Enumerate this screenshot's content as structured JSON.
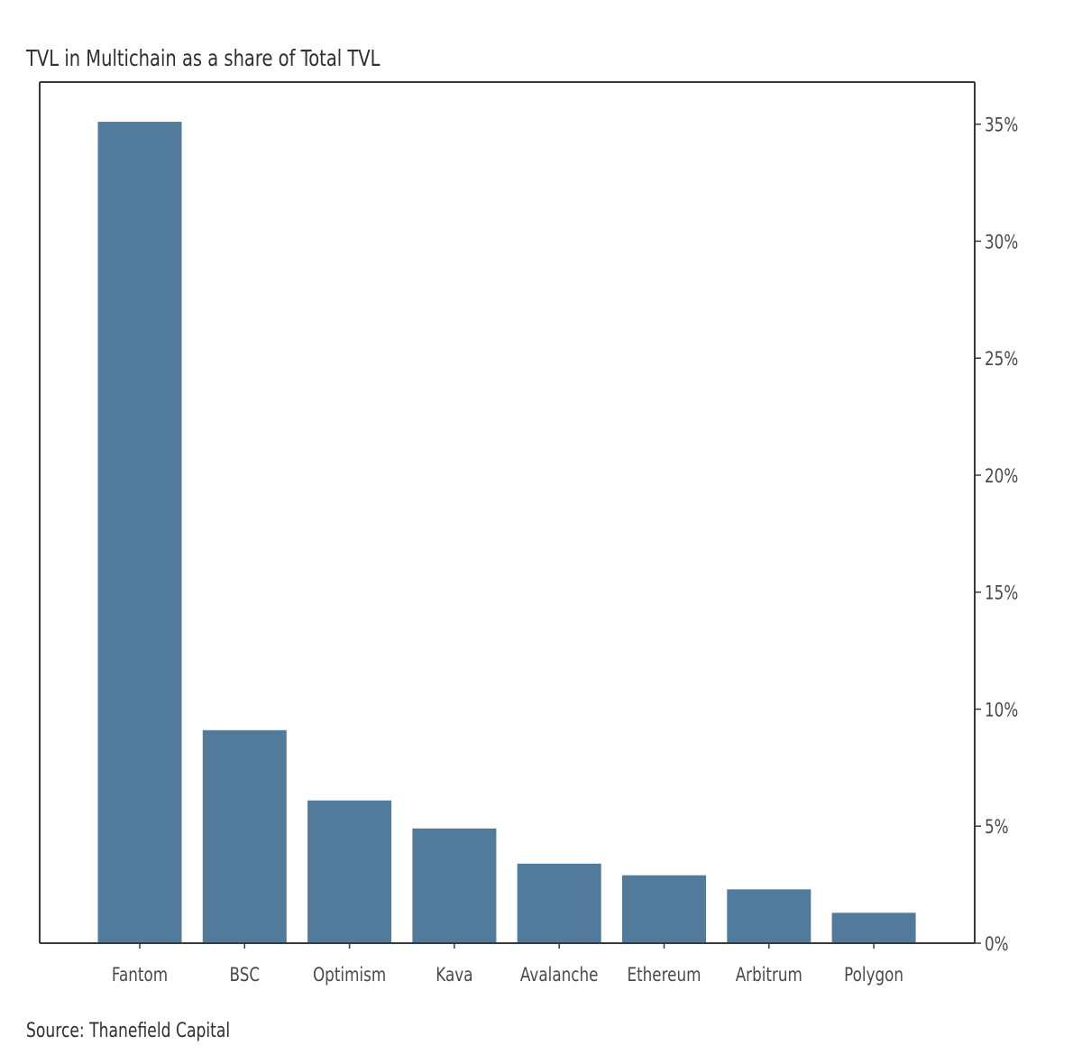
{
  "chart_data": {
    "type": "bar",
    "title": "TVL in Multichain as a share of Total TVL",
    "source": "Source: Thanefield Capital",
    "xlabel": "",
    "ylabel": "",
    "categories": [
      "Fantom",
      "BSC",
      "Optimism",
      "Kava",
      "Avalanche",
      "Ethereum",
      "Arbitrum",
      "Polygon"
    ],
    "values": [
      35.1,
      9.1,
      6.1,
      4.9,
      3.4,
      2.9,
      2.3,
      1.3
    ],
    "ylim": [
      0,
      36.8
    ],
    "yticks": [
      0,
      5,
      10,
      15,
      20,
      25,
      30,
      35
    ],
    "ytick_labels": [
      "0%",
      "5%",
      "10%",
      "15%",
      "20%",
      "25%",
      "30%",
      "35%"
    ],
    "y_axis_side": "right",
    "grid": false,
    "colors": {
      "bar": "#517a9b",
      "axis": "#3a3a3a"
    }
  }
}
